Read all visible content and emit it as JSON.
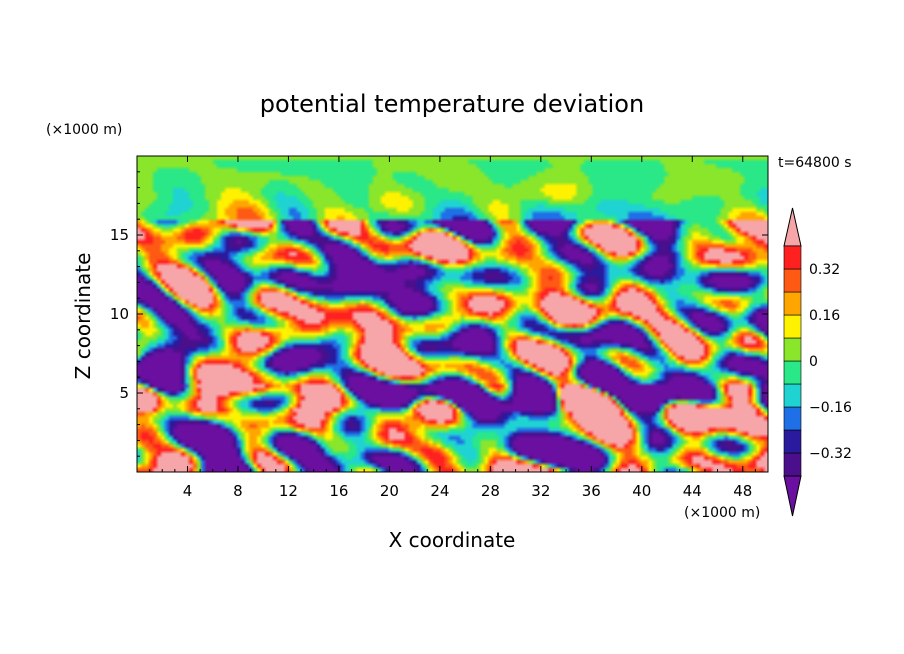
{
  "chart_data": {
    "type": "heatmap",
    "title": "potential temperature deviation",
    "xlabel": "X coordinate",
    "ylabel": "Z coordinate",
    "x_unit": "(×1000 m)",
    "y_unit": "(×1000 m)",
    "time_label": "t=64800 s",
    "xlim": [
      0,
      50
    ],
    "ylim": [
      0,
      20
    ],
    "x_ticks": [
      4,
      8,
      12,
      16,
      20,
      24,
      28,
      32,
      36,
      40,
      44,
      48
    ],
    "y_ticks": [
      5,
      10,
      15
    ],
    "grid": false,
    "colorbar": {
      "orientation": "vertical",
      "placement": "right",
      "levels": [
        -0.4,
        -0.32,
        -0.24,
        -0.16,
        -0.08,
        0,
        0.08,
        0.16,
        0.24,
        0.32,
        0.4
      ],
      "tick_labels": [
        "0.32",
        "0.16",
        "0",
        "−0.16",
        "−0.32"
      ],
      "tick_values": [
        0.32,
        0.16,
        0,
        -0.16,
        -0.32
      ],
      "colors_bottom_to_top": [
        "#4b0f8c",
        "#2a1a9e",
        "#1f6fe6",
        "#1fd3d3",
        "#2ae887",
        "#8ae62a",
        "#fff200",
        "#ffa500",
        "#ff5a14",
        "#ff2020"
      ],
      "under_color": "#6a0fa0",
      "over_color": "#f6a5a8"
    }
  }
}
